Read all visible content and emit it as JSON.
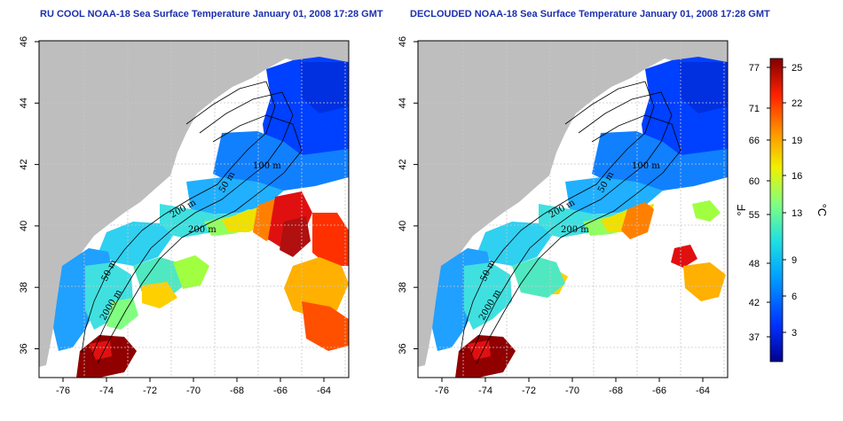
{
  "maps": [
    {
      "id": "left",
      "title": "RU COOL NOAA-18 Sea Surface Temperature January 01, 2008 17:28 GMT",
      "contour_labels": [
        "100 m",
        "50 m",
        "200 m",
        "50 m",
        "2000 m",
        "200 m"
      ]
    },
    {
      "id": "right",
      "title": "DECLOUDED NOAA-18 Sea Surface Temperature January 01, 2008 17:28 GMT",
      "contour_labels": [
        "100 m",
        "50 m",
        "200 m",
        "50 m",
        "2000 m",
        "200 m"
      ]
    }
  ],
  "axes": {
    "x_ticks": [
      "-76",
      "-74",
      "-72",
      "-70",
      "-68",
      "-66",
      "-64"
    ],
    "y_ticks": [
      "46",
      "44",
      "42",
      "40",
      "38",
      "36"
    ]
  },
  "colorbar": {
    "fahrenheit_ticks": [
      "77",
      "71",
      "66",
      "60",
      "55",
      "48",
      "42",
      "37"
    ],
    "celsius_ticks": [
      "25",
      "22",
      "19",
      "16",
      "13",
      "9",
      "6",
      "3"
    ],
    "fahrenheit_label": "°F",
    "celsius_label": "°C",
    "colors": [
      "#00008f",
      "#0030ff",
      "#00a0ff",
      "#20e0e0",
      "#80ff80",
      "#f0f000",
      "#ff9000",
      "#ff2000",
      "#800000"
    ]
  },
  "colors": {
    "land": "#bebebe",
    "no_data": "#ffffff",
    "title": "#1b2fae"
  }
}
